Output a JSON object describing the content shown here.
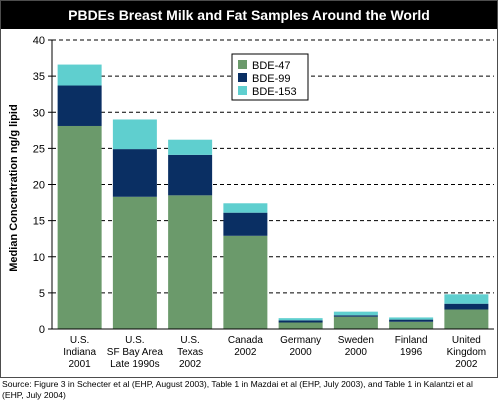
{
  "chart_data": {
    "type": "bar",
    "stacked": true,
    "title": "PBDEs Breast Milk and Fat Samples Around the World",
    "xlabel": "",
    "ylabel": "Median Concentration ng/g lipid",
    "ylim": [
      0,
      40
    ],
    "yticks": [
      0,
      5,
      10,
      15,
      20,
      25,
      30,
      35,
      40
    ],
    "grid": true,
    "legend_position": "top-center",
    "categories": [
      [
        "U.S.",
        "Indiana",
        "2001"
      ],
      [
        "U.S.",
        "SF Bay Area",
        "Late 1990s"
      ],
      [
        "U.S.",
        "Texas",
        "2002"
      ],
      [
        "Canada",
        "2002"
      ],
      [
        "Germany",
        "2000"
      ],
      [
        "Sweden",
        "2000"
      ],
      [
        "Finland",
        "1996"
      ],
      [
        "United",
        "Kingdom",
        "2002"
      ]
    ],
    "series": [
      {
        "name": "BDE-47",
        "color": "#6b9a6b",
        "values": [
          28.1,
          18.3,
          18.5,
          12.9,
          0.9,
          1.7,
          1.0,
          2.7
        ]
      },
      {
        "name": "BDE-99",
        "color": "#0a2f63",
        "values": [
          5.6,
          6.6,
          5.6,
          3.2,
          0.3,
          0.2,
          0.3,
          0.8
        ]
      },
      {
        "name": "BDE-153",
        "color": "#5fcfcf",
        "values": [
          2.9,
          4.1,
          2.1,
          1.3,
          0.3,
          0.5,
          0.3,
          1.3
        ]
      }
    ]
  },
  "source_note": "Source: Figure 3 in Schecter et al (EHP, August 2003), Table 1 in Mazdai et al (EHP, July 2003), and Table 1 in Kalantzi et al (EHP, July 2004)"
}
